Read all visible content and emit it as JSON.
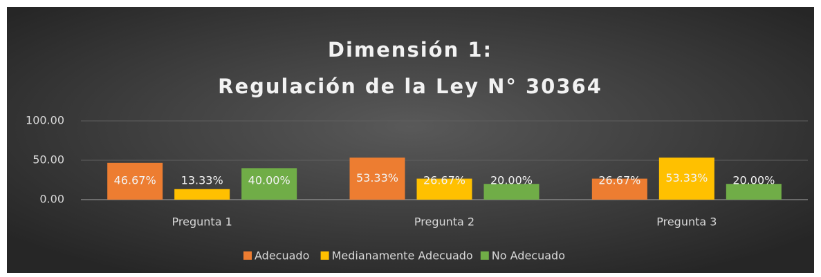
{
  "chart_data": {
    "type": "bar",
    "title": [
      "Dimensión 1:",
      "Regulación de la Ley N° 30364"
    ],
    "categories": [
      "Pregunta 1",
      "Pregunta 2",
      "Pregunta 3"
    ],
    "series": [
      {
        "name": "Adecuado",
        "color": "#ed7d31",
        "values": [
          46.67,
          53.33,
          26.67
        ],
        "value_labels": [
          "46.67%",
          "53.33%",
          "26.67%"
        ]
      },
      {
        "name": "Medianamente Adecuado",
        "color": "#ffc000",
        "values": [
          13.33,
          26.67,
          53.33
        ],
        "value_labels": [
          "13.33%",
          "26.67%",
          "53.33%"
        ]
      },
      {
        "name": "No Adecuado",
        "color": "#70ad47",
        "values": [
          40.0,
          20.0,
          20.0
        ],
        "value_labels": [
          "40.00%",
          "20.00%",
          "20.00%"
        ]
      }
    ],
    "ylim": [
      0,
      100
    ],
    "yticks": [
      {
        "value": 0,
        "label": "0.00"
      },
      {
        "value": 50,
        "label": "50.00"
      },
      {
        "value": 100,
        "label": "100.00"
      }
    ],
    "grid": true,
    "legend": "bottom"
  }
}
